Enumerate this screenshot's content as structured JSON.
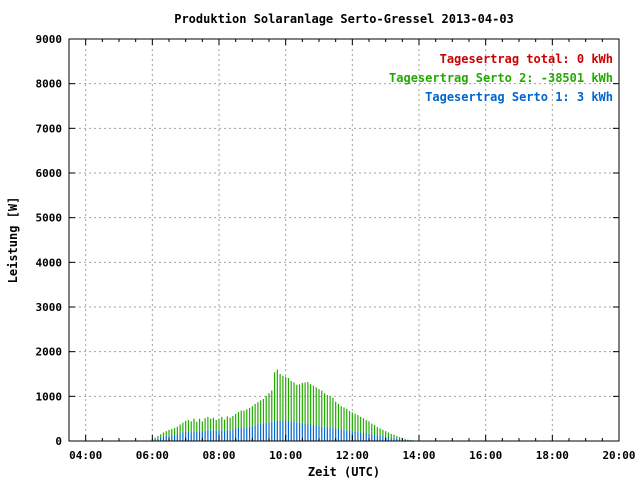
{
  "chart_data": {
    "type": "bar",
    "title": "Produktion Solaranlage Serto-Gressel 2013-04-03",
    "xlabel": "Zeit (UTC)",
    "ylabel": "Leistung [W]",
    "xlim": [
      3.5,
      20.0
    ],
    "ylim": [
      0,
      9000
    ],
    "x_ticks": [
      {
        "value": 4,
        "label": "04:00"
      },
      {
        "value": 6,
        "label": "06:00"
      },
      {
        "value": 8,
        "label": "08:00"
      },
      {
        "value": 10,
        "label": "10:00"
      },
      {
        "value": 12,
        "label": "12:00"
      },
      {
        "value": 14,
        "label": "14:00"
      },
      {
        "value": 16,
        "label": "16:00"
      },
      {
        "value": 18,
        "label": "18:00"
      },
      {
        "value": 20,
        "label": "20:00"
      }
    ],
    "y_ticks": [
      {
        "value": 0,
        "label": "0"
      },
      {
        "value": 1000,
        "label": "1000"
      },
      {
        "value": 2000,
        "label": "2000"
      },
      {
        "value": 3000,
        "label": "3000"
      },
      {
        "value": 4000,
        "label": "4000"
      },
      {
        "value": 5000,
        "label": "5000"
      },
      {
        "value": 6000,
        "label": "6000"
      },
      {
        "value": 7000,
        "label": "7000"
      },
      {
        "value": 8000,
        "label": "8000"
      },
      {
        "value": 9000,
        "label": "9000"
      }
    ],
    "grid": true,
    "legend_position": "top-right",
    "legend": [
      {
        "label": "Tagesertrag total: 0 kWh",
        "color": "#cc0000"
      },
      {
        "label": "Tagesertrag Serto 2: -38501 kWh",
        "color": "#22aa00"
      },
      {
        "label": "Tagesertrag Serto 1: 3 kWh",
        "color": "#0066cc"
      }
    ],
    "stacked": true,
    "x_time_start": "06:00",
    "x_time_step_minutes": 5,
    "series": [
      {
        "color": "#0066cc",
        "values": [
          30,
          45,
          60,
          80,
          100,
          110,
          120,
          130,
          140,
          150,
          170,
          190,
          200,
          210,
          200,
          220,
          210,
          230,
          210,
          230,
          250,
          240,
          250,
          230,
          240,
          250,
          230,
          250,
          240,
          260,
          280,
          300,
          310,
          300,
          310,
          320,
          330,
          350,
          370,
          390,
          400,
          410,
          420,
          430,
          440,
          450,
          450,
          460,
          460,
          450,
          440,
          430,
          420,
          410,
          400,
          390,
          380,
          370,
          360,
          350,
          340,
          330,
          320,
          310,
          300,
          290,
          280,
          270,
          260,
          250,
          240,
          230,
          220,
          210,
          200,
          190,
          180,
          170,
          160,
          150,
          140,
          130,
          120,
          110,
          100,
          90,
          80,
          70,
          60,
          50,
          40,
          30,
          20,
          15,
          10
        ]
      },
      {
        "color": "#22aa00",
        "values": [
          20,
          30,
          50,
          70,
          90,
          110,
          130,
          140,
          150,
          170,
          200,
          220,
          250,
          260,
          240,
          280,
          220,
          270,
          230,
          280,
          290,
          260,
          270,
          240,
          260,
          290,
          250,
          300,
          280,
          300,
          330,
          350,
          370,
          380,
          400,
          420,
          450,
          480,
          500,
          520,
          540,
          600,
          650,
          700,
          1100,
          1150,
          1050,
          1000,
          980,
          960,
          900,
          880,
          840,
          860,
          900,
          920,
          940,
          900,
          880,
          850,
          820,
          800,
          750,
          720,
          700,
          680,
          600,
          560,
          520,
          500,
          480,
          440,
          420,
          400,
          380,
          350,
          330,
          300,
          280,
          240,
          220,
          180,
          160,
          140,
          120,
          100,
          80,
          70,
          50,
          40,
          30,
          20,
          10,
          8,
          5
        ]
      }
    ]
  }
}
